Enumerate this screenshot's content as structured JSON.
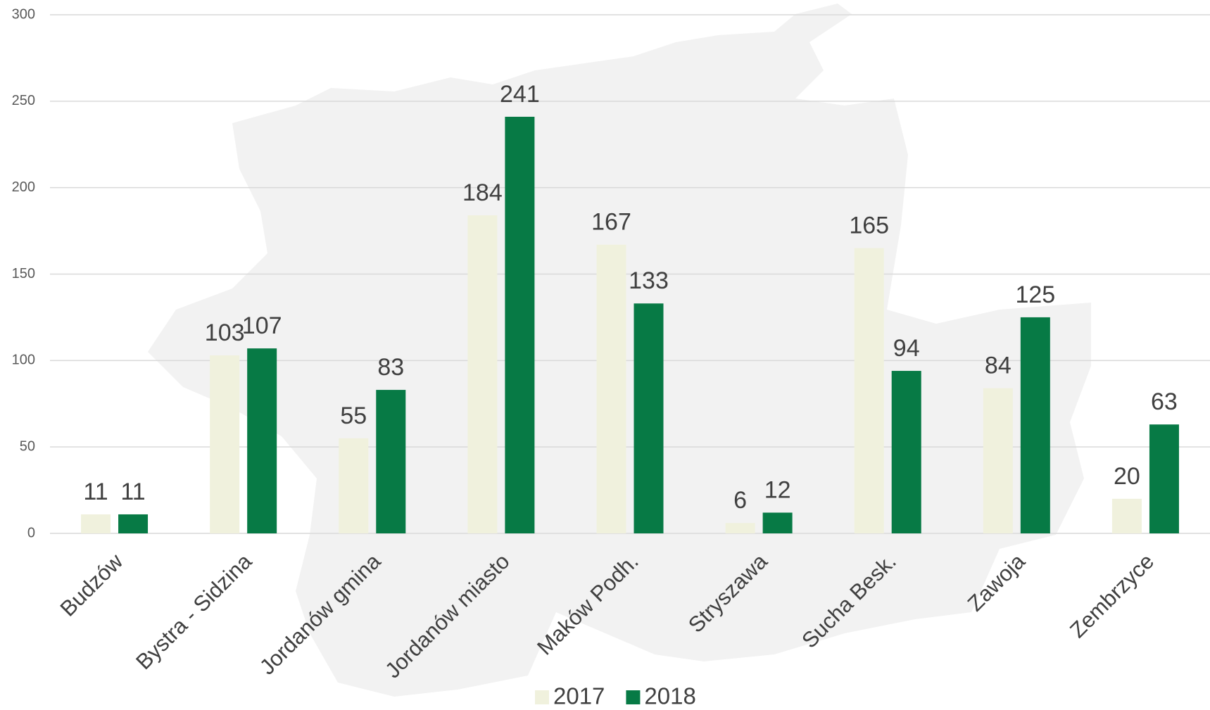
{
  "chart_data": {
    "type": "bar",
    "categories": [
      "Budzów",
      "Bystra - Sidzina",
      "Jordanów gmina",
      "Jordanów miasto",
      "Maków Podh.",
      "Stryszawa",
      "Sucha Besk.",
      "Zawoja",
      "Zembrzyce"
    ],
    "series": [
      {
        "name": "2017",
        "color": "#f0f1dd",
        "values": [
          11,
          103,
          55,
          184,
          167,
          6,
          165,
          84,
          20
        ]
      },
      {
        "name": "2018",
        "color": "#077a45",
        "values": [
          11,
          107,
          83,
          241,
          133,
          12,
          94,
          125,
          63
        ]
      }
    ],
    "ylim": [
      0,
      300
    ],
    "yticks": [
      0,
      50,
      100,
      150,
      200,
      250,
      300
    ],
    "grid": true,
    "legend": "bottom"
  }
}
